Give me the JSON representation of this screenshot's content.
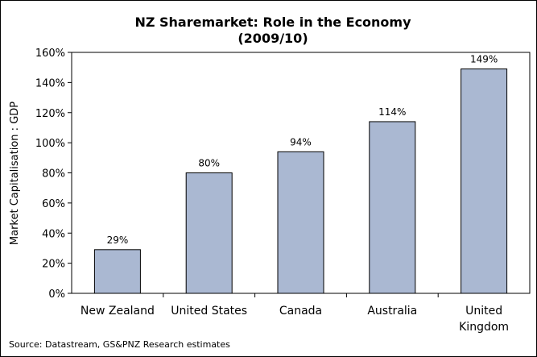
{
  "chart_data": {
    "type": "bar",
    "title": "NZ Sharemarket: Role in the Economy",
    "subtitle": "(2009/10)",
    "ylabel": "Market Capitalisation : GDP",
    "xlabel": "",
    "categories": [
      "New Zealand",
      "United States",
      "Canada",
      "Australia",
      "United Kingdom"
    ],
    "category_lines": [
      [
        "New Zealand"
      ],
      [
        "United States"
      ],
      [
        "Canada"
      ],
      [
        "Australia"
      ],
      [
        "United",
        "Kingdom"
      ]
    ],
    "values": [
      29,
      80,
      94,
      114,
      149
    ],
    "data_labels": [
      "29%",
      "80%",
      "94%",
      "114%",
      "149%"
    ],
    "ylim": [
      0,
      160
    ],
    "yticks": [
      0,
      20,
      40,
      60,
      80,
      100,
      120,
      140,
      160
    ],
    "ytick_labels": [
      "0%",
      "20%",
      "40%",
      "60%",
      "80%",
      "100%",
      "120%",
      "140%",
      "160%"
    ],
    "grid": false,
    "legend": "none",
    "bar_color": "#aab8d2",
    "bar_edge": "#000000",
    "source": "Source: Datastream, GS&PNZ Research estimates"
  }
}
